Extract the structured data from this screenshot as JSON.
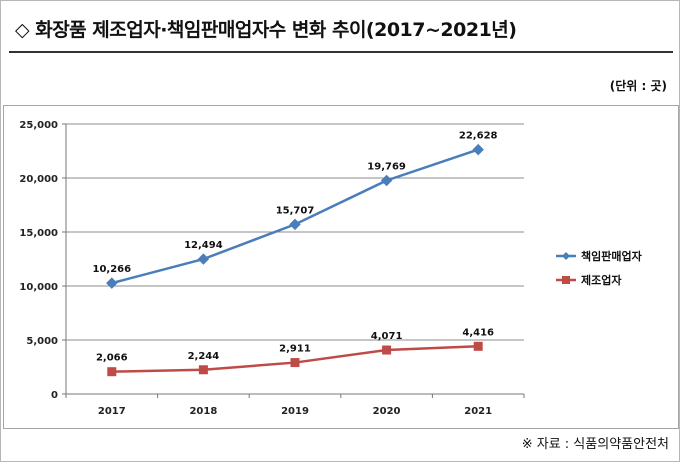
{
  "page": {
    "title": "◇ 화장품 제조업자·책임판매업자수 변화 추이(2017~2021년)",
    "unit": "(단위 : 곳)",
    "source": "※ 자료 : 식품의약품안전처"
  },
  "chart_data": {
    "type": "line",
    "title": "화장품 제조업자·책임판매업자수 변화 추이(2017~2021년)",
    "xlabel": "",
    "ylabel": "",
    "categories": [
      "2017",
      "2018",
      "2019",
      "2020",
      "2021"
    ],
    "y_ticks": [
      "0",
      "5,000",
      "10,000",
      "15,000",
      "20,000",
      "25,000"
    ],
    "ylim": [
      0,
      25000
    ],
    "grid": true,
    "legend": "right",
    "series": [
      {
        "name": "책임판매업자",
        "color": "#4a7ebb",
        "marker": "diamond",
        "values": [
          10266,
          12494,
          15707,
          19769,
          22628
        ],
        "labels": [
          "10,266",
          "12,494",
          "15,707",
          "19,769",
          "22,628"
        ]
      },
      {
        "name": "제조업자",
        "color": "#be4b48",
        "marker": "square",
        "values": [
          2066,
          2244,
          2911,
          4071,
          4416
        ],
        "labels": [
          "2,066",
          "2,244",
          "2,911",
          "4,071",
          "4,416"
        ]
      }
    ]
  }
}
